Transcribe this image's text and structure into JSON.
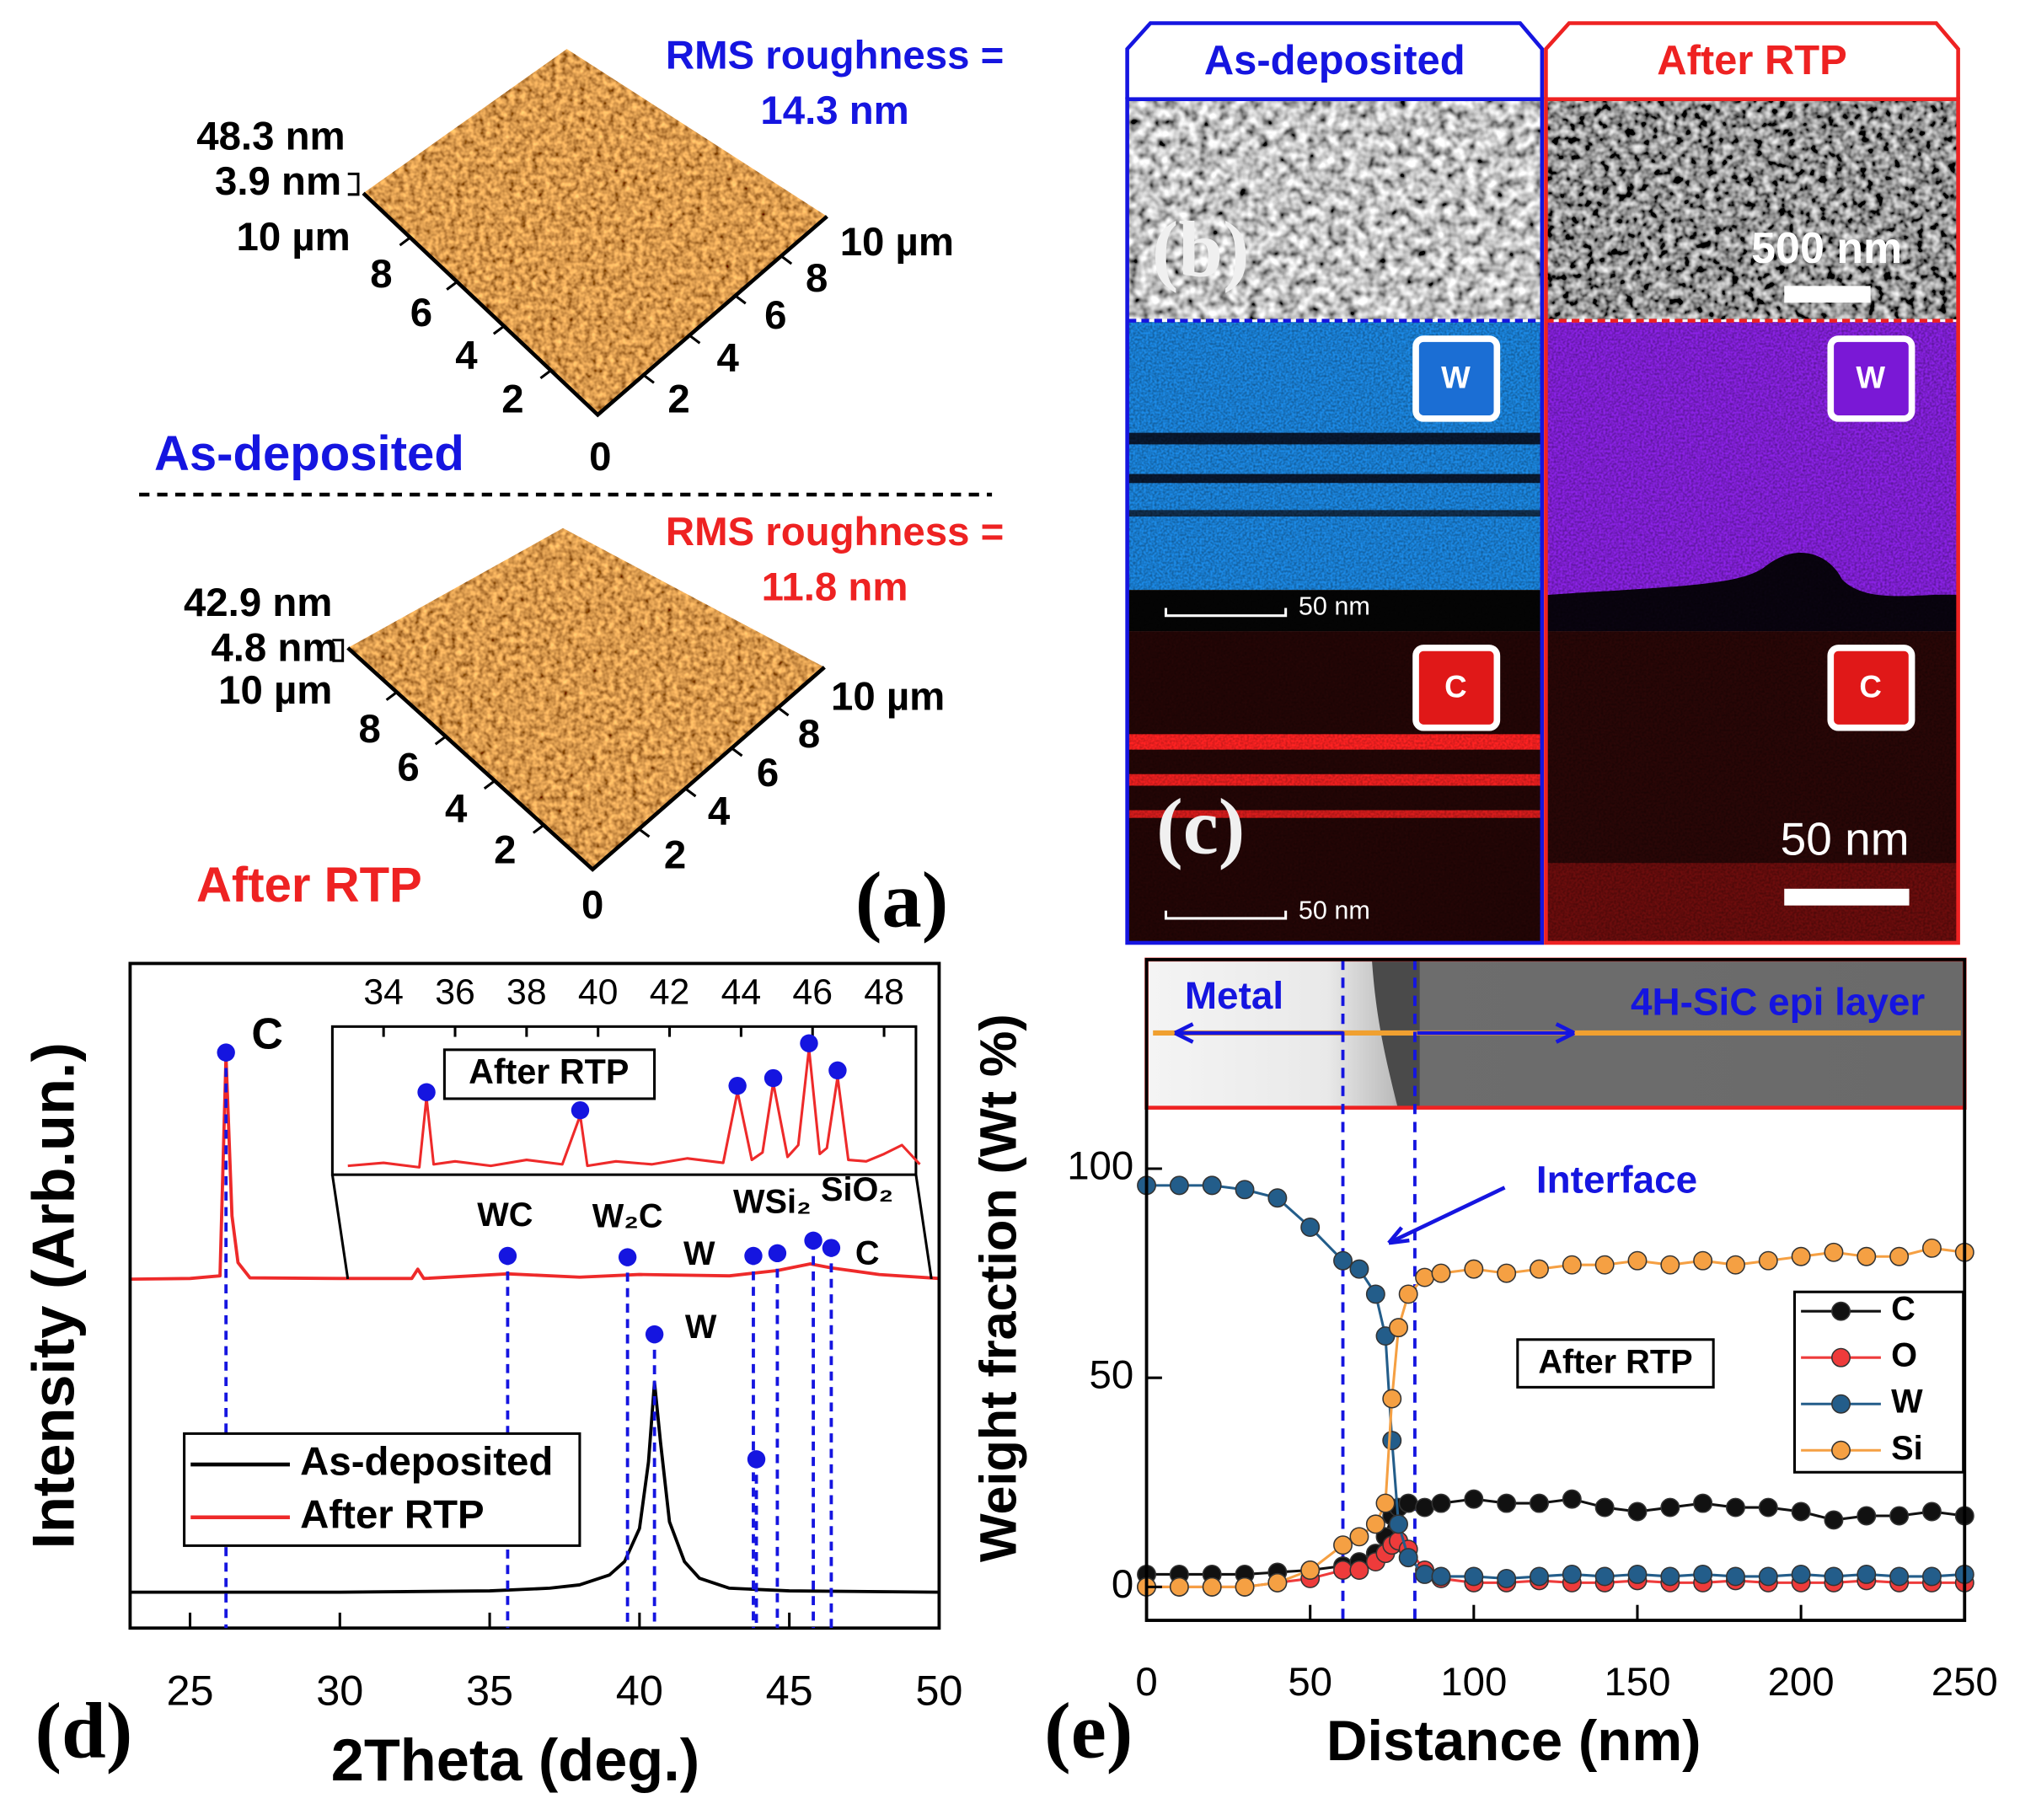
{
  "panel_a": {
    "panel_label": "(a)",
    "afm": [
      {
        "name": "As-deposited",
        "rms_label": "RMS roughness =",
        "rms_value": "14.3 nm",
        "z_max": "48.3 nm",
        "z_min": "3.9 nm",
        "axis_label": "10 µm",
        "axis_ticks": [
          "8",
          "6",
          "4",
          "2"
        ],
        "origin": "0"
      },
      {
        "name": "After RTP",
        "rms_label": "RMS roughness =",
        "rms_value": "11.8 nm",
        "z_max": "42.9 nm",
        "z_min": "4.8 nm",
        "axis_label": "10 µm",
        "axis_ticks": [
          "8",
          "6",
          "4",
          "2"
        ],
        "origin": "0"
      }
    ]
  },
  "panel_bc": {
    "headers": [
      "As-deposited",
      "After RTP"
    ],
    "label_b": "(b)",
    "label_c": "(c)",
    "sem_scale": "500 nm",
    "map_scale": "50 nm",
    "small_scale": "50 nm",
    "elements": [
      "W",
      "C"
    ]
  },
  "chart_data": [
    {
      "type": "line",
      "panel_label": "(d)",
      "xlabel": "2Theta (deg.)",
      "ylabel": "Intensity (Arb.un.)",
      "xlim": [
        23,
        50
      ],
      "xticks": [
        25,
        30,
        35,
        40,
        45,
        50
      ],
      "ylim": [
        0,
        100
      ],
      "series": [
        {
          "name": "As-deposited",
          "color": "#000000",
          "x": [
            23,
            30,
            35,
            37,
            38,
            39,
            39.5,
            40,
            40.3,
            40.5,
            40.7,
            41,
            41.5,
            42,
            43,
            45,
            50
          ],
          "values": [
            5.4,
            5.4,
            5.6,
            6,
            6.5,
            8,
            10,
            15,
            25,
            37,
            28,
            16,
            10,
            7.5,
            6,
            5.6,
            5.4
          ]
        },
        {
          "name": "After RTP",
          "color": "#ee2a2a",
          "x": [
            23,
            25,
            26,
            26.2,
            26.4,
            26.6,
            27,
            30,
            32.4,
            32.6,
            32.8,
            35.6,
            38,
            40,
            43,
            44.6,
            45.7,
            46.4,
            48,
            50
          ],
          "values": [
            52.5,
            52.6,
            53,
            86,
            62,
            55,
            52.7,
            52.6,
            52.6,
            54,
            52.6,
            53.3,
            52.8,
            53.2,
            53,
            53.8,
            54.8,
            54.2,
            53.2,
            52.6
          ]
        }
      ],
      "peak_color": "#1515e0",
      "peaks": [
        {
          "x": 26.2,
          "y": 86.6,
          "label": "C"
        },
        {
          "x": 35.6,
          "y": 56,
          "label": "WC"
        },
        {
          "x": 39.6,
          "y": 55.8,
          "label": "W₂C"
        },
        {
          "x": 43.8,
          "y": 56,
          "label": "W"
        },
        {
          "x": 44.6,
          "y": 56.4,
          "label": "WSi₂"
        },
        {
          "x": 45.8,
          "y": 58.3,
          "label": "SiO₂"
        },
        {
          "x": 46.4,
          "y": 57.2,
          "label": "C"
        },
        {
          "x": 40.5,
          "y": 44.2,
          "label": "W"
        },
        {
          "x": 43.9,
          "y": 25.4
        }
      ]
    },
    {
      "type": "line",
      "label": "After RTP",
      "xlim": [
        33,
        49
      ],
      "xticks": [
        34,
        36,
        38,
        40,
        42,
        44,
        46,
        48
      ],
      "ylim": [
        0,
        100
      ],
      "series": [
        {
          "color": "#ee2a2a",
          "x": [
            33,
            34,
            35,
            35.2,
            35.4,
            36,
            37,
            38,
            39,
            39.5,
            39.7,
            40.5,
            41.5,
            42.5,
            43.5,
            43.9,
            44.3,
            44.6,
            44.9,
            45.3,
            45.6,
            45.9,
            46.2,
            46.4,
            46.7,
            47,
            47.5,
            48,
            48.5,
            49
          ],
          "values": [
            6,
            8,
            5,
            52,
            7,
            9,
            6,
            10,
            7,
            40,
            6,
            9,
            7,
            11,
            8,
            56,
            10,
            15,
            62,
            12,
            20,
            85,
            14,
            18,
            66,
            10,
            9,
            14,
            20,
            7
          ]
        }
      ],
      "peak_color": "#1515e0",
      "peaks": [
        {
          "x": 35.2,
          "y": 55.7
        },
        {
          "x": 39.5,
          "y": 43.5
        },
        {
          "x": 43.9,
          "y": 60
        },
        {
          "x": 44.9,
          "y": 65.2
        },
        {
          "x": 45.9,
          "y": 88.7
        },
        {
          "x": 46.7,
          "y": 70.4
        }
      ]
    },
    {
      "type": "line",
      "panel_label": "(e)",
      "xlabel": "Distance (nm)",
      "ylabel": "Weight fraction (Wt %)",
      "xlim": [
        0,
        250
      ],
      "xticks": [
        0,
        50,
        100,
        150,
        200,
        250
      ],
      "ylim": [
        -8,
        150
      ],
      "yticks": [
        0,
        50,
        100
      ],
      "x": [
        0,
        10,
        20,
        30,
        40,
        50,
        60,
        65,
        70,
        73,
        75,
        77,
        80,
        85,
        90,
        100,
        110,
        120,
        130,
        140,
        150,
        160,
        170,
        180,
        190,
        200,
        210,
        220,
        230,
        240,
        250
      ],
      "series": [
        {
          "name": "C",
          "color": "#111111",
          "values": [
            3,
            3,
            3,
            3,
            3.5,
            4,
            5,
            6,
            8,
            12,
            17,
            19,
            20,
            19,
            20,
            21,
            20,
            20,
            21,
            19,
            18,
            19,
            20,
            19,
            19,
            18,
            16,
            17,
            17,
            18,
            17
          ]
        },
        {
          "name": "O",
          "color": "#ee3b3b",
          "values": [
            0,
            0,
            0,
            0,
            1,
            2,
            4,
            4,
            6,
            8,
            10,
            11,
            9,
            4,
            2,
            1,
            1,
            1.5,
            1,
            1,
            1.5,
            1,
            1,
            1.5,
            1,
            1,
            1,
            1.5,
            1,
            1,
            1
          ]
        },
        {
          "name": "W",
          "color": "#235d8a",
          "values": [
            96,
            96,
            96,
            95,
            93,
            86,
            78,
            76,
            70,
            60,
            35,
            15,
            7,
            3,
            2.5,
            2.5,
            2,
            2.5,
            3,
            2.5,
            3,
            2.5,
            3,
            2.5,
            2.5,
            3,
            2.5,
            3,
            2.5,
            2.5,
            3
          ]
        },
        {
          "name": "Si",
          "color": "#f5a043",
          "values": [
            0,
            0,
            0,
            0,
            1,
            4,
            10,
            12,
            15,
            20,
            45,
            62,
            70,
            74,
            75,
            76,
            75,
            76,
            77,
            77,
            78,
            77,
            78,
            77,
            78,
            79,
            80,
            79,
            79,
            81,
            80
          ]
        }
      ],
      "reference_lines": [
        60,
        82
      ],
      "annotations": {
        "metal": "Metal",
        "epi": "4H-SiC epi layer",
        "interface": "Interface",
        "box": "After RTP"
      }
    }
  ]
}
